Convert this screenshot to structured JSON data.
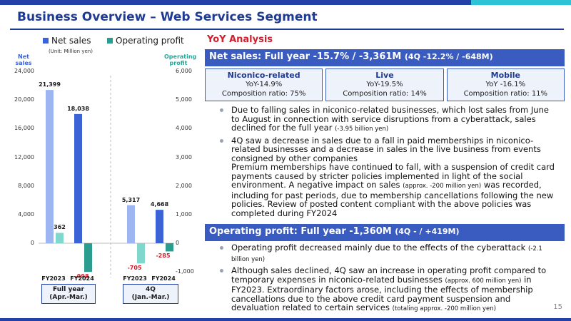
{
  "title": "Business Overview – Web Services Segment",
  "page_number": "15",
  "chart_data": {
    "type": "bar",
    "legend": [
      "Net sales",
      "Operating profit"
    ],
    "unit": "(Unit: Million yen)",
    "left_axis_title": "Net sales",
    "right_axis_title": "Operating profit",
    "left_ticks": [
      "24,000",
      "20,000",
      "16,000",
      "12,000",
      "8,000",
      "4,000",
      "0"
    ],
    "right_ticks": [
      "6,000",
      "5,000",
      "4,000",
      "3,000",
      "2,000",
      "1,000",
      "0",
      "-1,000"
    ],
    "ylim_left": [
      0,
      24000
    ],
    "ylim_right": [
      -1000,
      6000
    ],
    "groups": [
      {
        "name": "Full year (Apr.-Mar.)",
        "name_line1": "Full year",
        "name_line2": "(Apr.-Mar.)",
        "periods": [
          "FY2023",
          "FY2024"
        ],
        "net_sales": [
          21399,
          18038
        ],
        "net_sales_labels": [
          "21,399",
          "18,038"
        ],
        "operating_profit": [
          362,
          -998
        ],
        "operating_profit_labels": [
          "362",
          "-998"
        ]
      },
      {
        "name": "4Q (Jan.-Mar.)",
        "name_line1": "4Q",
        "name_line2": "(Jan.-Mar.)",
        "periods": [
          "FY2023",
          "FY2024"
        ],
        "net_sales": [
          5317,
          4668
        ],
        "net_sales_labels": [
          "5,317",
          "4,668"
        ],
        "operating_profit": [
          -705,
          -285
        ],
        "operating_profit_labels": [
          "-705",
          "-285"
        ]
      }
    ],
    "colors": {
      "net_sales_fy2023": "#9db6f2",
      "net_sales_fy2024": "#3b63d6",
      "op_fy2023": "#7fd8cb",
      "op_fy2024": "#2a9d8f",
      "negative_label": "#d21f2e"
    }
  },
  "yoy_title": "YoY Analysis",
  "net_sales_section": {
    "header": "Net sales: Full year -15.7% / -3,361M",
    "header_sub": "(4Q -12.2% / -648M)",
    "boxes": [
      {
        "title": "Niconico-related",
        "yoy": "YoY-14.9%",
        "ratio": "Composition ratio: 75%"
      },
      {
        "title": "Live",
        "yoy": "YoY-19.5%",
        "ratio": "Composition ratio: 14%"
      },
      {
        "title": "Mobile",
        "yoy": "YoY -16.1%",
        "ratio": "Composition ratio: 11%"
      }
    ],
    "bullet1": "Due to falling sales in niconico-related businesses, which lost sales from June to August in connection with service disruptions from a cyberattack, sales declined for the full year",
    "bullet1_note": "(-3.95 billion yen)",
    "bullet2_a": "4Q saw a decrease in sales due to a fall in paid memberships in niconico-related businesses and a decrease in sales in the live business from events consigned by other companies",
    "bullet2_b": "Premium memberships have continued to fall, with a suspension of credit card payments caused by stricter policies implemented in light of the social environment. A negative impact on sales",
    "bullet2_note": "(approx. -200 million yen)",
    "bullet2_c": "was recorded, including for past periods, due to membership cancellations following the new policies. Review of posted content compliant with the above policies was completed during FY2024"
  },
  "op_section": {
    "header": "Operating profit: Full year -1,360M",
    "header_sub": "(4Q - / +419M)",
    "bullet1": "Operating profit decreased mainly due to the effects of the cyberattack",
    "bullet1_note": "(-2.1 billion yen)",
    "bullet2_a": "Although sales declined, 4Q saw an increase in operating profit compared to temporary expenses in niconico-related businesses",
    "bullet2_note": "(approx. 600 million yen)",
    "bullet2_b": "in FY2023. Extraordinary factors arose, including the effects of membership cancellations due to the above credit card payment suspension and devaluation related to certain services",
    "bullet2_note2": "(totaling approx. -200 million yen)"
  }
}
